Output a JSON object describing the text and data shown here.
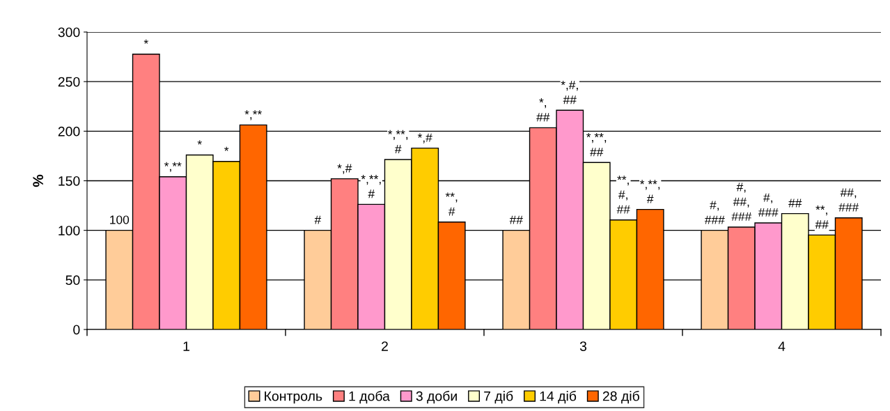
{
  "chart_data": {
    "type": "bar",
    "ylabel": "%",
    "categories": [
      "1",
      "2",
      "3",
      "4"
    ],
    "ylim": [
      0,
      300
    ],
    "yticks": [
      0,
      50,
      100,
      150,
      200,
      250,
      300
    ],
    "grid": "y",
    "legend": "bottom",
    "series": [
      {
        "name": "Контроль",
        "color": "#ffcc99",
        "values": [
          100,
          100,
          100,
          100
        ],
        "value_labels": [
          "100",
          "#",
          "##",
          "#,\n###"
        ]
      },
      {
        "name": "1 доба",
        "color": "#ff8080",
        "values": [
          277.7,
          152,
          203.5,
          103.3
        ],
        "value_labels": [
          "*",
          "*,#",
          "*,\n##",
          "#,\n##,\n###"
        ]
      },
      {
        "name": "3 доби",
        "color": "#ff99cc",
        "values": [
          154,
          126.2,
          221.1,
          107.5
        ],
        "value_labels": [
          "*,**",
          "*,**,\n#",
          "*,#,\n##",
          "#,\n###"
        ]
      },
      {
        "name": "7 діб",
        "color": "#ffffcc",
        "values": [
          176,
          171.4,
          168.4,
          116.9
        ],
        "value_labels": [
          "*",
          "*,**,\n#",
          "*,**,\n##",
          "##"
        ]
      },
      {
        "name": "14 діб",
        "color": "#ffcc00",
        "values": [
          169.5,
          182.9,
          110.5,
          95.3
        ],
        "value_labels": [
          "*",
          "*,#",
          "**,\n#,\n##",
          "**,\n##"
        ]
      },
      {
        "name": "28 діб",
        "color": "#ff6600",
        "values": [
          206.3,
          108.4,
          121.1,
          112.6
        ],
        "value_labels": [
          "*,**",
          "**,\n#",
          "*,**,\n#",
          "##,\n###"
        ]
      }
    ]
  }
}
